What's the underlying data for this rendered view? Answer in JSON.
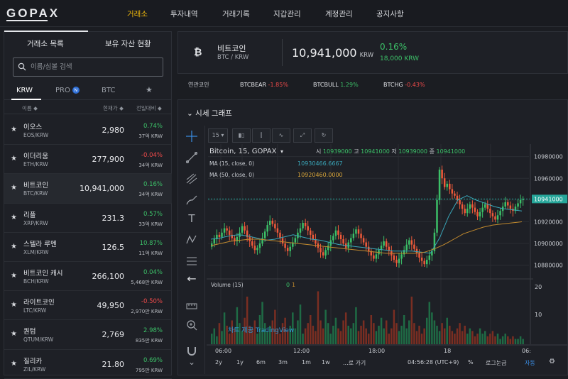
{
  "brand": "GOPAX",
  "nav": [
    "거래소",
    "투자내역",
    "거래기록",
    "지갑관리",
    "계정관리",
    "공지사항"
  ],
  "nav_active": 0,
  "left": {
    "tabs": [
      "거래소 목록",
      "보유 자산 현황"
    ],
    "search_placeholder": "이름/심볼 검색",
    "market_tabs": [
      "KRW",
      "PRO",
      "BTC"
    ],
    "pro_badge": "N",
    "columns": [
      "이름 ◆",
      "현재가 ◆",
      "전일대비 ◆"
    ],
    "coins": [
      {
        "name": "이오스",
        "pair": "EOS/KRW",
        "price": "2,980",
        "change": "0.74%",
        "volume": "37억 KRW",
        "dir": "up"
      },
      {
        "name": "이더리움",
        "pair": "ETH/KRW",
        "price": "277,900",
        "change": "-0.04%",
        "volume": "34억 KRW",
        "dir": "down"
      },
      {
        "name": "비트코인",
        "pair": "BTC/KRW",
        "price": "10,941,000",
        "change": "0.16%",
        "volume": "34억 KRW",
        "dir": "up"
      },
      {
        "name": "리플",
        "pair": "XRP/KRW",
        "price": "231.3",
        "change": "0.57%",
        "volume": "33억 KRW",
        "dir": "up"
      },
      {
        "name": "스텔라 루멘",
        "pair": "XLM/KRW",
        "price": "126.5",
        "change": "10.87%",
        "volume": "11억 KRW",
        "dir": "up"
      },
      {
        "name": "비트코인 캐시",
        "pair": "BCH/KRW",
        "price": "266,100",
        "change": "0.04%",
        "volume": "5,468만 KRW",
        "dir": "up"
      },
      {
        "name": "라이트코인",
        "pair": "LTC/KRW",
        "price": "49,950",
        "change": "-0.50%",
        "volume": "2,970만 KRW",
        "dir": "down"
      },
      {
        "name": "퀀텀",
        "pair": "QTUM/KRW",
        "price": "2,769",
        "change": "2.98%",
        "volume": "835만 KRW",
        "dir": "up"
      },
      {
        "name": "질리카",
        "pair": "ZIL/KRW",
        "price": "21.80",
        "change": "0.69%",
        "volume": "795만 KRW",
        "dir": "up"
      }
    ]
  },
  "header": {
    "icon": "bitcoin-icon",
    "name": "비트코인",
    "pair": "BTC / KRW",
    "price": "10,941,000",
    "unit": "KRW",
    "change": "0.16%",
    "volume": "18,000 KRW"
  },
  "related": {
    "label": "연관코인",
    "items": [
      {
        "symbol": "BTCBEAR",
        "change": "-1.85%",
        "dir": "down"
      },
      {
        "symbol": "BTCBULL",
        "change": "1.29%",
        "dir": "up"
      },
      {
        "symbol": "BTCHG",
        "change": "-0.43%",
        "dir": "down"
      }
    ]
  },
  "chart_panel": {
    "title": "시세 그래프",
    "interval": "15",
    "legend_main": "Bitcoin, 15, GOPAX",
    "ohlc": {
      "o_label": "시",
      "o": "10939000",
      "h_label": "고",
      "h": "10941000",
      "l_label": "저",
      "l": "10939000",
      "c_label": "종",
      "c": "10941000"
    },
    "ma15_label": "MA (15, close, 0)",
    "ma15_value": "10930466.6667",
    "ma50_label": "MA (50, close, 0)",
    "ma50_value": "10920460.0000",
    "volume_label": "Volume (15)",
    "volume_vals": [
      "0",
      "1"
    ],
    "watermark": "차트 제공 TradingView",
    "price_ticks": [
      "10980000",
      "10960000",
      "10941000",
      "10920000",
      "10900000",
      "10880000"
    ],
    "volume_ticks": [
      "20",
      "10"
    ],
    "time_ticks": [
      "06:00",
      "12:00",
      "18:00",
      "18",
      "06:"
    ],
    "timeframes": [
      "2y",
      "1y",
      "6m",
      "3m",
      "1m",
      "1w",
      "...로 가기"
    ],
    "clock": "04:56:28 (UTC+9)",
    "options": [
      "%",
      "로그눈금",
      "자동"
    ],
    "colors": {
      "up": "#3cc068",
      "down": "#ef5a3a",
      "ma15": "#3aa6b9",
      "ma50": "#c28a2e",
      "last_price": "#26a69a"
    }
  },
  "chart_data": {
    "type": "candlestick",
    "title": "Bitcoin, 15, GOPAX",
    "x_ticks": [
      "06:00",
      "12:00",
      "18:00",
      "18",
      "06:"
    ],
    "ylim": [
      10870000,
      10985000
    ],
    "last_price": 10941000,
    "series": [
      {
        "name": "Bitcoin",
        "values": [
          10900000,
          10904000,
          10908000,
          10906000,
          10910000,
          10914000,
          10912000,
          10908000,
          10905000,
          10902000,
          10906000,
          10910000,
          10916000,
          10912000,
          10906000,
          10902000,
          10898000,
          10894000,
          10896000,
          10900000,
          10905000,
          10911000,
          10917000,
          10921000,
          10918000,
          10914000,
          10910000,
          10905000,
          10900000,
          10896000,
          10893000,
          10897000,
          10901000,
          10905000,
          10910000,
          10914000,
          10919000,
          10916000,
          10912000,
          10908000,
          10904000,
          10900000,
          10896000,
          10892000,
          10889000,
          10894000,
          10898000,
          10903000,
          10907000,
          10912000,
          10908000,
          10904000,
          10900000,
          10896000,
          10901000,
          10905000,
          10909000,
          10913000,
          10909000,
          10905000,
          10901000,
          10897000,
          10893000,
          10889000,
          10886000,
          10890000,
          10894000,
          10898000,
          10902000,
          10897000,
          10893000,
          10889000,
          10885000,
          10882000,
          10886000,
          10890000,
          10894000,
          10899000,
          10903000,
          10899000,
          10895000,
          10891000,
          10887000,
          10884000,
          10881000,
          10885000,
          10889000,
          10893000,
          10910000,
          10940000,
          10968000,
          10960000,
          10952000,
          10955000,
          10950000,
          10946000,
          10944000,
          10940000,
          10936000,
          10932000,
          10928000,
          10932000,
          10936000,
          10933000,
          10929000,
          10925000,
          10929000,
          10933000,
          10936000,
          10932000,
          10928000,
          10925000,
          10922000,
          10926000,
          10930000,
          10934000,
          10938000,
          10935000,
          10932000,
          10930000,
          10934000,
          10937000,
          10940000,
          10941000
        ]
      },
      {
        "name": "MA (15, close, 0)",
        "values": [
          10904000,
          10905000,
          10907000,
          10908000,
          10907000,
          10905000,
          10903000,
          10904000,
          10906000,
          10908000,
          10906000,
          10904000,
          10903000,
          10901000,
          10899000,
          10898000,
          10897000,
          10896000,
          10895000,
          10894000,
          10893000,
          10893000,
          10893000,
          10892000,
          10891000,
          10905000,
          10925000,
          10940000,
          10944000,
          10940000,
          10937000,
          10934000,
          10932000,
          10931000,
          10930000
        ]
      },
      {
        "name": "MA (50, close, 0)",
        "values": [
          10898000,
          10900000,
          10902000,
          10903000,
          10904000,
          10904000,
          10903000,
          10902000,
          10901000,
          10900000,
          10899000,
          10898000,
          10897000,
          10896000,
          10895000,
          10894000,
          10893000,
          10892000,
          10891000,
          10891000,
          10891000,
          10891000,
          10892000,
          10895000,
          10899000,
          10904000,
          10909000,
          10912000,
          10915000,
          10917000,
          10918000,
          10919000,
          10920000
        ]
      }
    ],
    "volume_ticks": [
      20,
      10
    ]
  }
}
